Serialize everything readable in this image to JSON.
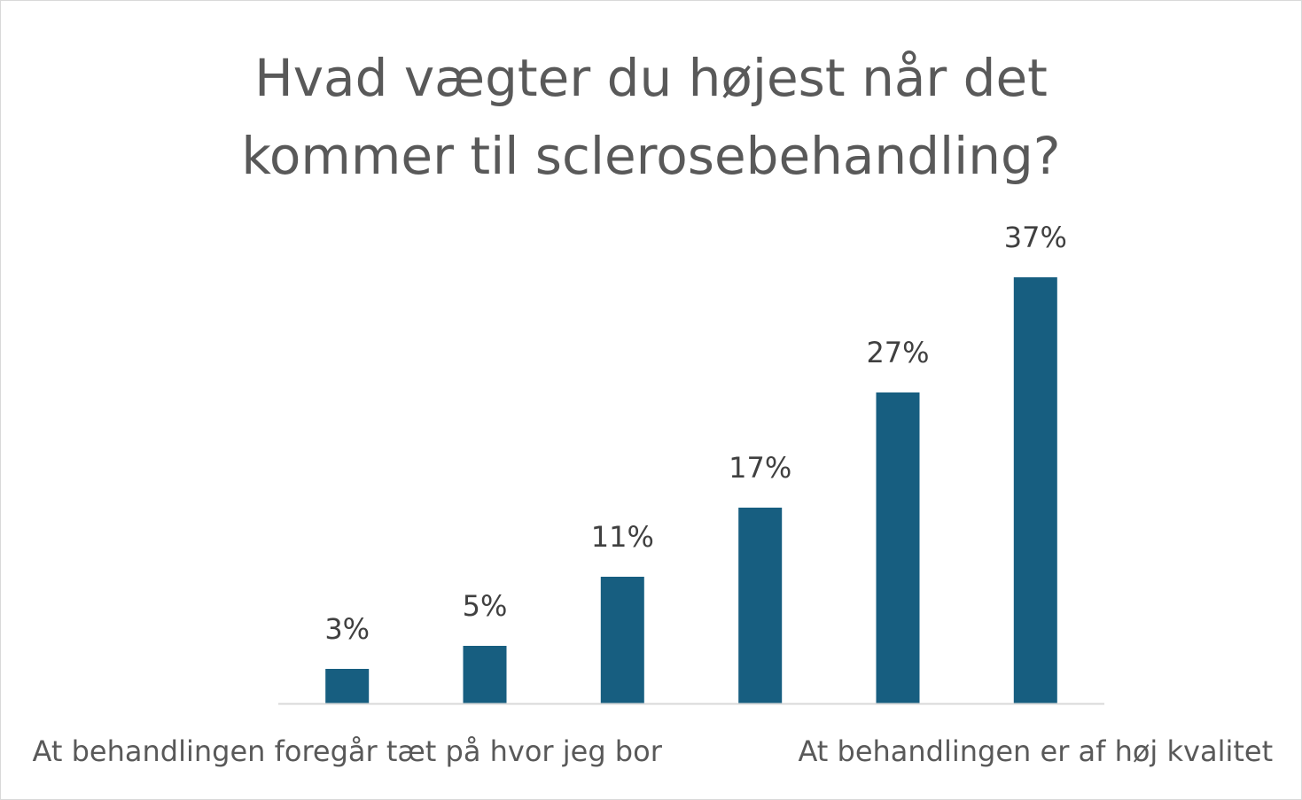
{
  "chart_data": {
    "type": "bar",
    "title_lines": [
      "Hvad vægter du højest når det",
      "kommer til sclerosebehandling?"
    ],
    "categories": [
      "At behandlingen foregår tæt på hvor jeg bor",
      "",
      "",
      "",
      "",
      "At behandlingen er af høj kvalitet"
    ],
    "values": [
      3,
      5,
      11,
      17,
      27,
      37
    ],
    "value_labels": [
      "3%",
      "5%",
      "11%",
      "17%",
      "27%",
      "37%"
    ],
    "unit": "%",
    "ylim": [
      0,
      37
    ],
    "bar_color": "#175e80",
    "axis_color": "#d9d9d9",
    "grid": false,
    "legend": "none"
  }
}
